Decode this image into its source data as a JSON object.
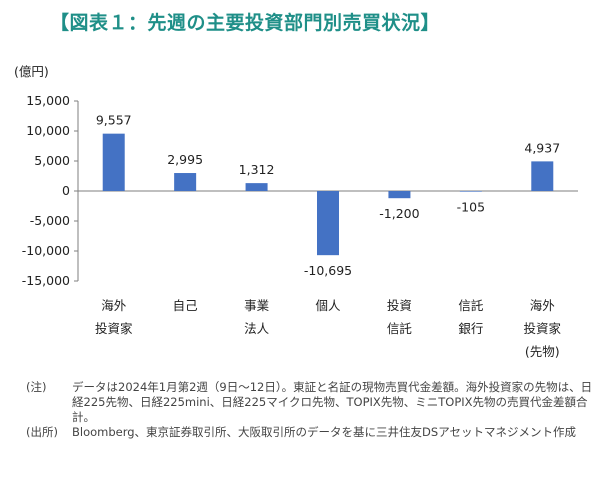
{
  "title": "【図表１：先週の主要投資部門別売買状況】",
  "chart_data": {
    "type": "bar",
    "unit_label": "(億円)",
    "categories": [
      [
        "海外",
        "投資家"
      ],
      [
        "自己"
      ],
      [
        "事業",
        "法人"
      ],
      [
        "個人"
      ],
      [
        "投資",
        "信託"
      ],
      [
        "信託",
        "銀行"
      ],
      [
        "海外",
        "投資家",
        "(先物)"
      ]
    ],
    "values": [
      9557,
      2995,
      1312,
      -10695,
      -1200,
      -105,
      4937
    ],
    "value_labels": [
      "9,557",
      "2,995",
      "1,312",
      "-10,695",
      "-1,200",
      "-105",
      "4,937"
    ],
    "ylim": [
      -15000,
      15000
    ],
    "yticks": [
      15000,
      10000,
      5000,
      0,
      -5000,
      -10000,
      -15000
    ],
    "ytick_labels": [
      "15,000",
      "10,000",
      "5,000",
      "0",
      "-5,000",
      "-10,000",
      "-15,000"
    ],
    "bar_color": "#4472c4",
    "grid": false
  },
  "notes": [
    {
      "label": "(注)",
      "text": "データは2024年1月第2週（9日〜12日）。東証と名証の現物売買代金差額。海外投資家の先物は、日経225先物、日経225mini、日経225マイクロ先物、TOPIX先物、ミニTOPIX先物の売買代金差額合計。"
    },
    {
      "label": "(出所)",
      "text": "Bloomberg、東京証券取引所、大阪取引所のデータを基に三井住友DSアセットマネジメント作成"
    }
  ],
  "colors": {
    "title": "#1f8f88",
    "bars": "#4472c4",
    "axis": "#7f7f7f"
  }
}
